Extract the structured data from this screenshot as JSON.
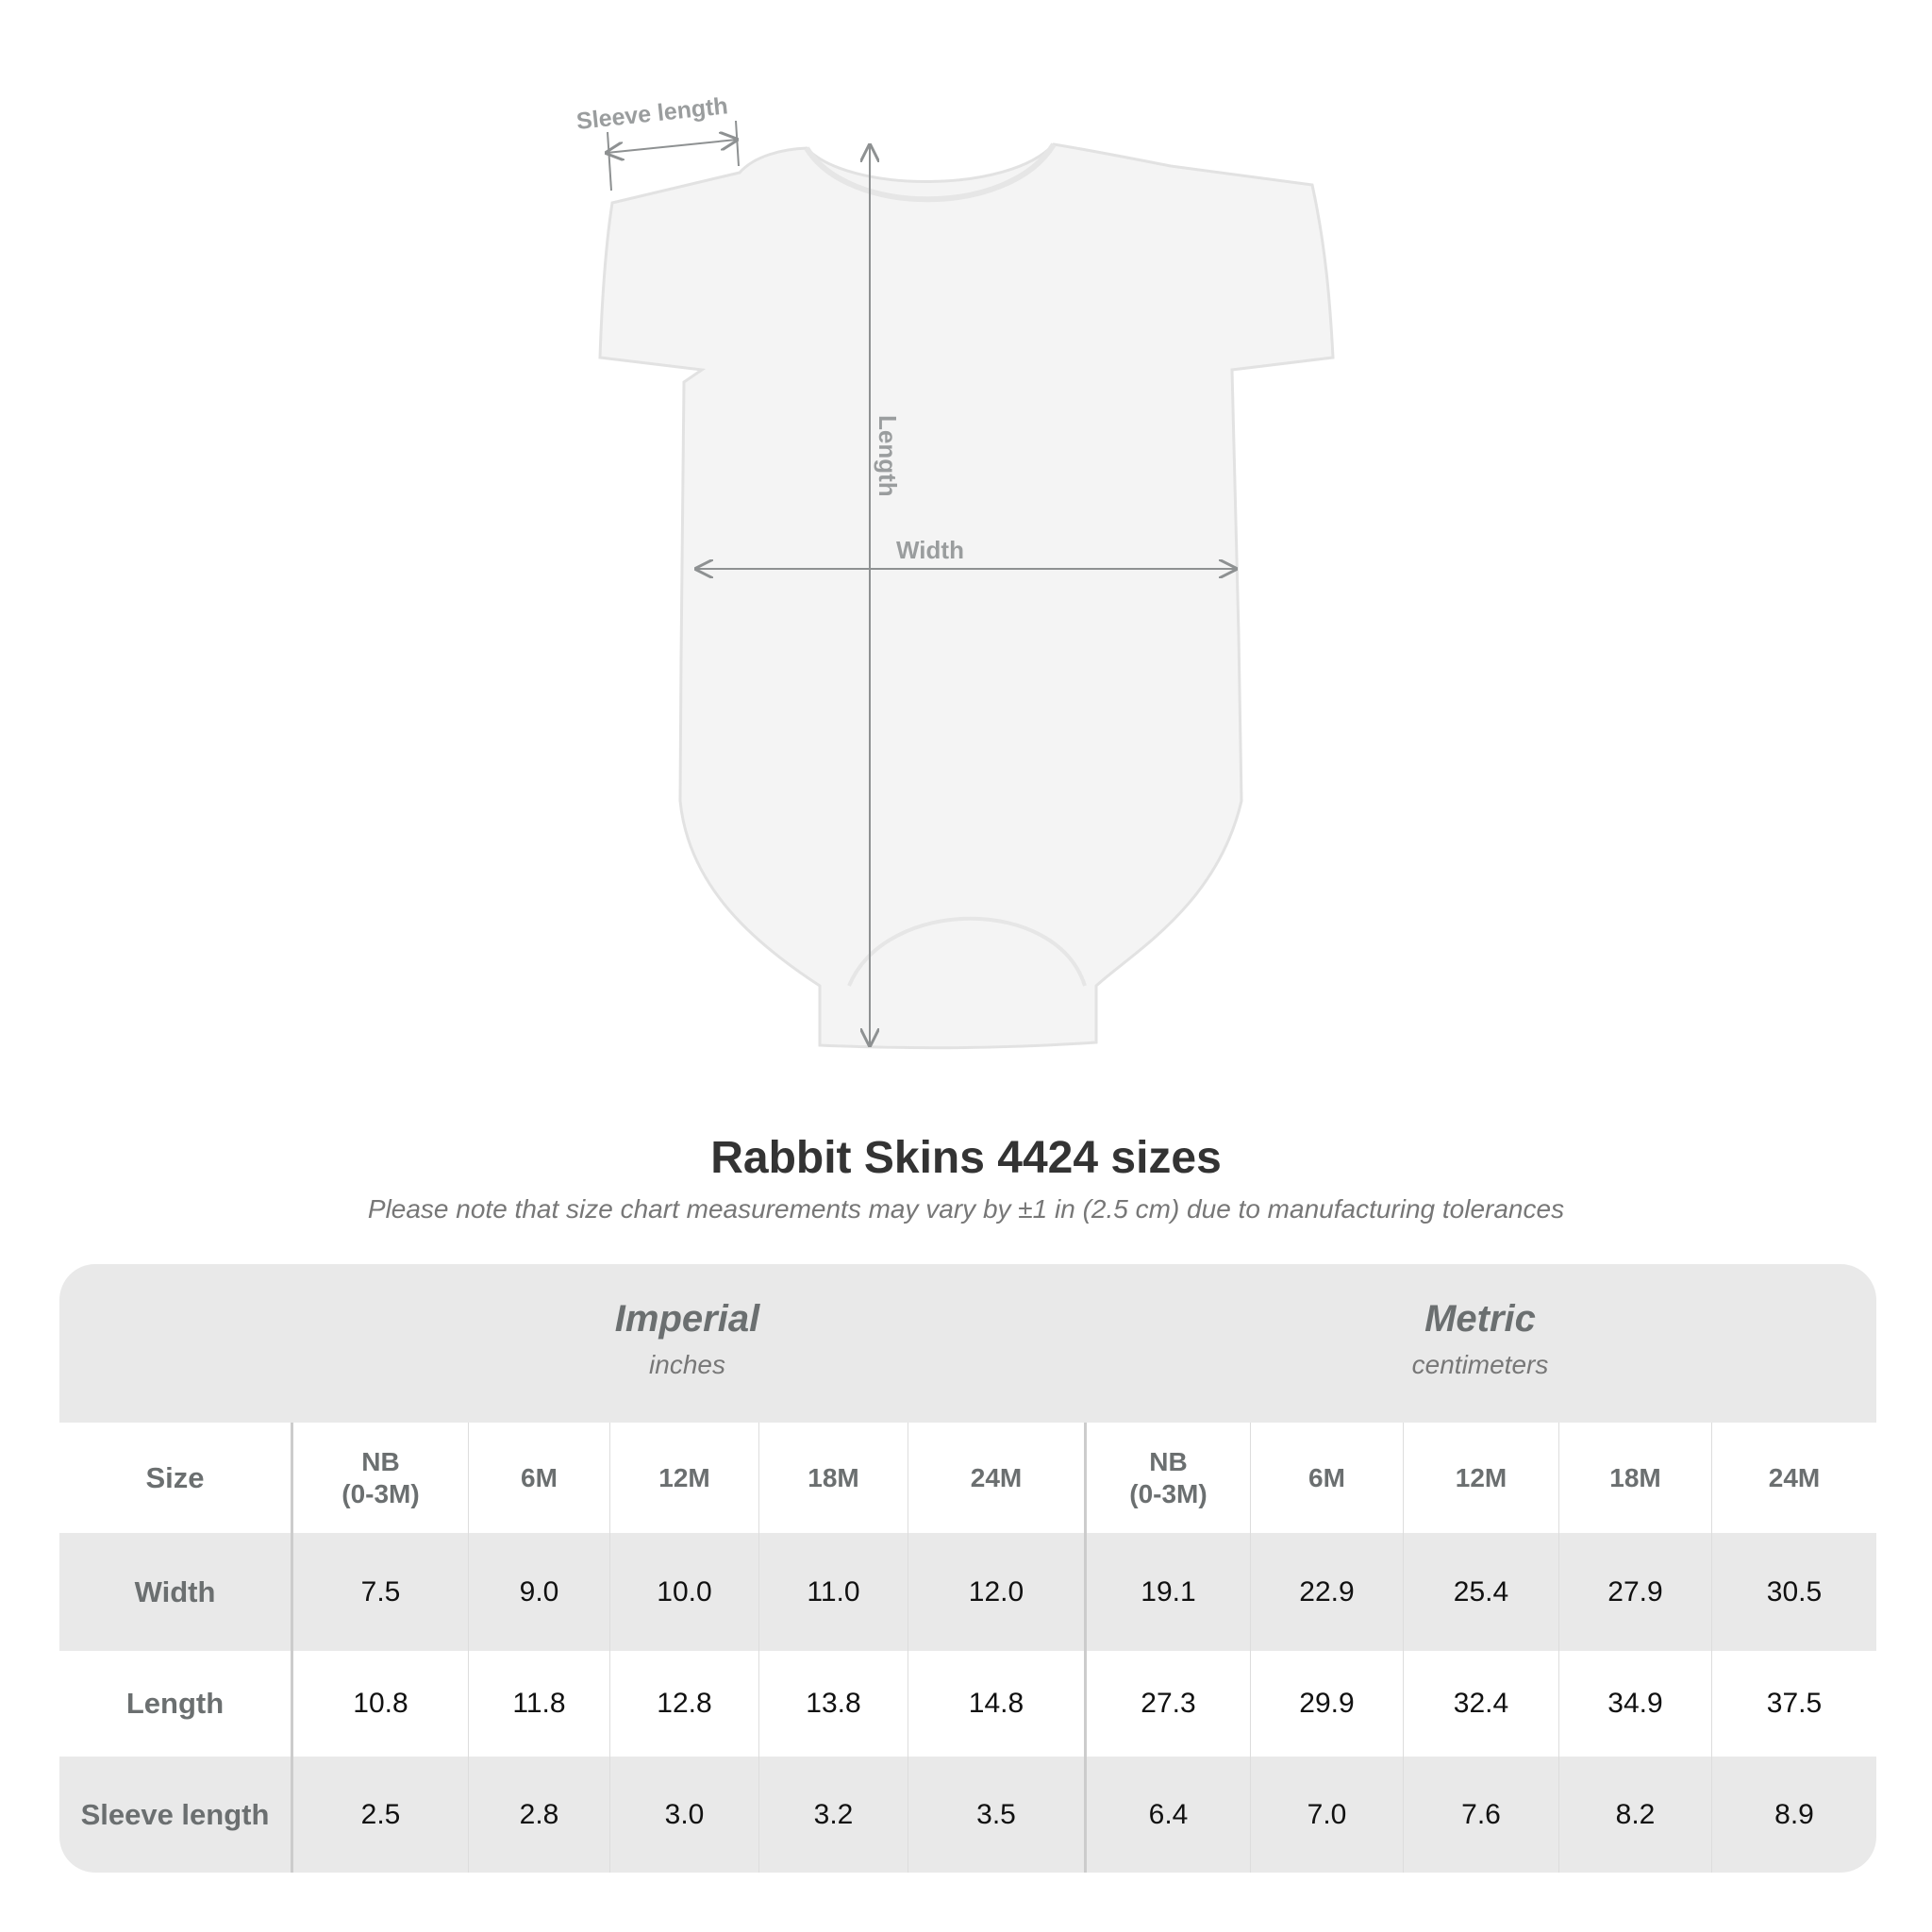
{
  "diagram": {
    "labels": {
      "sleeve": "Sleeve length",
      "length": "Length",
      "width": "Width"
    },
    "colors": {
      "garment": "#f4f4f4",
      "measure": "#8e9192"
    }
  },
  "title": "Rabbit Skins 4424 sizes",
  "subtitle": "Please note that size chart measurements may vary by ±1 in (2.5 cm) due to manufacturing tolerances",
  "table": {
    "imperial": {
      "title": "Imperial",
      "unit": "inches"
    },
    "metric": {
      "title": "Metric",
      "unit": "centimeters"
    },
    "size_label": "Size",
    "sizes": [
      "NB\n(0-3M)",
      "6M",
      "12M",
      "18M",
      "24M",
      "NB\n(0-3M)",
      "6M",
      "12M",
      "18M",
      "24M"
    ],
    "rows": [
      {
        "label": "Width",
        "values": [
          "7.5",
          "9.0",
          "10.0",
          "11.0",
          "12.0",
          "19.1",
          "22.9",
          "25.4",
          "27.9",
          "30.5"
        ]
      },
      {
        "label": "Length",
        "values": [
          "10.8",
          "11.8",
          "12.8",
          "13.8",
          "14.8",
          "27.3",
          "29.9",
          "32.4",
          "34.9",
          "37.5"
        ]
      },
      {
        "label": "Sleeve length",
        "values": [
          "2.5",
          "2.8",
          "3.0",
          "3.2",
          "3.5",
          "6.4",
          "7.0",
          "7.6",
          "8.2",
          "8.9"
        ]
      }
    ]
  }
}
